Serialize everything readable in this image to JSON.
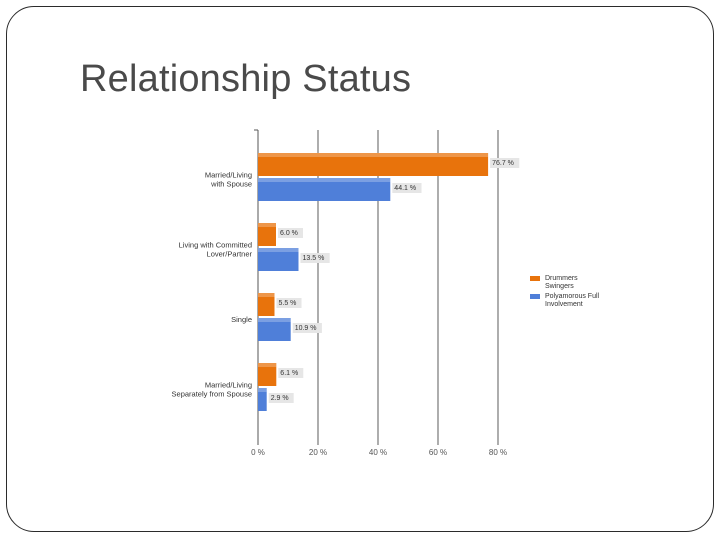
{
  "slide": {
    "title": "Relationship Status"
  },
  "chart_data": {
    "type": "bar",
    "orientation": "horizontal",
    "categories": [
      [
        "Married/Living",
        "with Spouse"
      ],
      [
        "Living with Committed",
        "Lover/Partner"
      ],
      [
        "Single"
      ],
      [
        "Married/Living",
        "Separately from Spouse"
      ]
    ],
    "series": [
      {
        "name": [
          "Drummers",
          "Swingers"
        ],
        "color": "#e8730c",
        "values": [
          76.7,
          6.0,
          5.5,
          6.1
        ]
      },
      {
        "name": [
          "Polyamorous Full",
          "Involvement"
        ],
        "color": "#4f7fd9",
        "values": [
          44.1,
          13.5,
          10.9,
          2.9
        ]
      }
    ],
    "xlim": [
      0,
      80
    ],
    "xticks": [
      0,
      20,
      40,
      60,
      80
    ],
    "tick_suffix": " %",
    "value_suffix": " %",
    "grid": true,
    "legend_position": "right"
  }
}
